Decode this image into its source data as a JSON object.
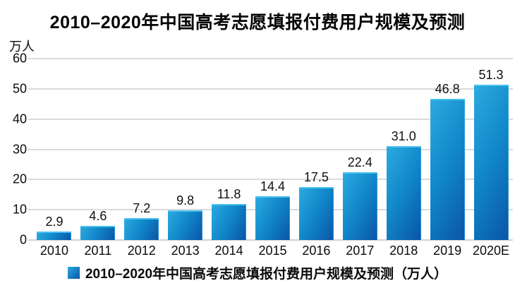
{
  "title": "2010–2020年中国高考志愿填报付费用户规模及预测",
  "y_axis": {
    "unit": "万人",
    "ticks": [
      0,
      10,
      20,
      30,
      40,
      50,
      60
    ]
  },
  "legend": {
    "label": "2010–2020年中国高考志愿填报付费用户规模及预测（万人）"
  },
  "colors": {
    "bar_gradient_light": "#2cabe0",
    "bar_gradient_mid": "#1187c9",
    "bar_gradient_dark": "#0a55a6",
    "gridline": "#dadada",
    "text": "#0b0b0b"
  },
  "chart_data": {
    "type": "bar",
    "title": "2010–2020年中国高考志愿填报付费用户规模及预测",
    "categories": [
      "2010",
      "2011",
      "2012",
      "2013",
      "2014",
      "2015",
      "2016",
      "2017",
      "2018",
      "2019",
      "2020E"
    ],
    "values": [
      2.9,
      4.6,
      7.2,
      9.8,
      11.8,
      14.4,
      17.5,
      22.4,
      31.0,
      46.8,
      51.3
    ],
    "value_labels": [
      "2.9",
      "4.6",
      "7.2",
      "9.8",
      "11.8",
      "14.4",
      "17.5",
      "22.4",
      "31.0",
      "46.8",
      "51.3"
    ],
    "xlabel": "",
    "ylabel": "万人",
    "ylim": [
      0,
      60
    ],
    "yticks": [
      0,
      10,
      20,
      30,
      40,
      50,
      60
    ],
    "grid": true,
    "legend": "2010–2020年中国高考志愿填报付费用户规模及预测（万人）",
    "legend_position": "bottom"
  }
}
